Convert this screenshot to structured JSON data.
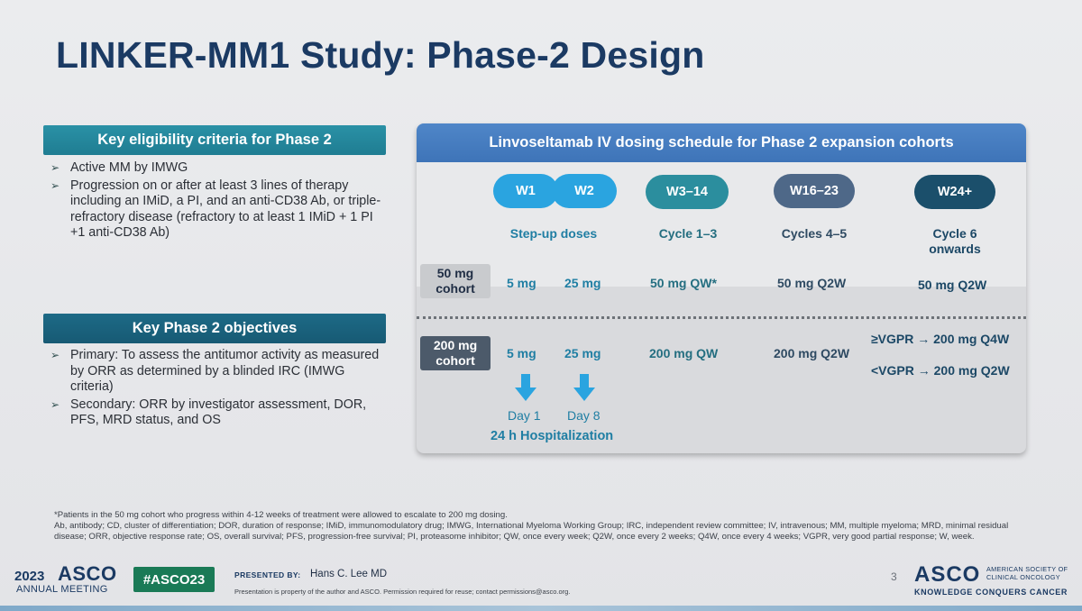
{
  "title": "LINKER-MM1 Study: Phase-2 Design",
  "eligibility": {
    "header": "Key eligibility criteria for Phase 2",
    "items": [
      "Active MM by IMWG",
      "Progression on or after at least 3 lines of therapy including an IMiD, a PI, and an anti-CD38 Ab, or triple-refractory disease (refractory to at least 1 IMiD + 1 PI +1 anti-CD38 Ab)"
    ]
  },
  "objectives": {
    "header": "Key Phase 2 objectives",
    "items": [
      "Primary: To assess the antitumor activity as measured by ORR as determined by a blinded IRC (IMWG criteria)",
      "Secondary: ORR by investigator assessment, DOR, PFS, MRD status, and OS"
    ]
  },
  "bullet_glyph": "➢",
  "dosing": {
    "header": "Linvoseltamab IV dosing schedule for Phase 2 expansion cohorts",
    "weeks": [
      "W1",
      "W2",
      "W3–14",
      "W16–23",
      "W24+"
    ],
    "phases": [
      "Step-up doses",
      "Cycle 1–3",
      "Cycles 4–5",
      "Cycle 6 onwards"
    ],
    "cohorts": [
      {
        "label": "50 mg cohort",
        "doses": [
          "5  mg",
          "25 mg",
          "50 mg QW*",
          "50 mg Q2W",
          "50 mg Q2W"
        ]
      },
      {
        "label": "200 mg cohort",
        "doses": [
          "5  mg",
          "25 mg",
          "200 mg QW",
          "200 mg Q2W"
        ],
        "late_doses": [
          "≥VGPR → 200 mg Q4W",
          "<VGPR → 200 mg Q2W"
        ]
      }
    ],
    "days": [
      "Day 1",
      "Day 8"
    ],
    "hospitalization": "24 h Hospitalization"
  },
  "footnotes": [
    "*Patients in the 50 mg cohort who progress within 4-12 weeks of treatment were allowed to escalate to 200 mg dosing.",
    "Ab, antibody; CD, cluster of differentiation; DOR, duration of response; IMiD, immunomodulatory drug; IMWG, International Myeloma Working Group; IRC, independent review committee; IV, intravenous; MM, multiple myeloma; MRD, minimal residual disease; ORR, objective response rate; OS, overall survival; PFS, progression-free survival; PI, proteasome inhibitor; QW, once every week; Q2W, once every 2 weeks; Q4W, once every 4 weeks; VGPR, very good partial response; W, week."
  ],
  "footer": {
    "year": "2023",
    "asco": "ASCO",
    "annual_meeting": "ANNUAL MEETING",
    "hashtag": "#ASCO23",
    "presented_by": "PRESENTED BY:",
    "presenter": "Hans C. Lee MD",
    "property_notice": "Presentation is property of the author and ASCO. Permission required for reuse; contact permissions@asco.org.",
    "page_number": "3",
    "society_logo": "ASCO",
    "society_name": "AMERICAN SOCIETY OF CLINICAL ONCOLOGY",
    "tagline": "KNOWLEDGE CONQUERS CANCER"
  },
  "colors": {
    "title": "#1b3a63",
    "eligibility_header": "#2a91a6",
    "objectives_header": "#1d6a86",
    "panel_header": "#4f86c8",
    "step_up": "#2aa4e0",
    "cycle_1_3": "#2b8e9e",
    "cycles_4_5": "#4e6888",
    "cycle_6": "#1b4f6b",
    "hashtag_bg": "#1a7a56"
  }
}
